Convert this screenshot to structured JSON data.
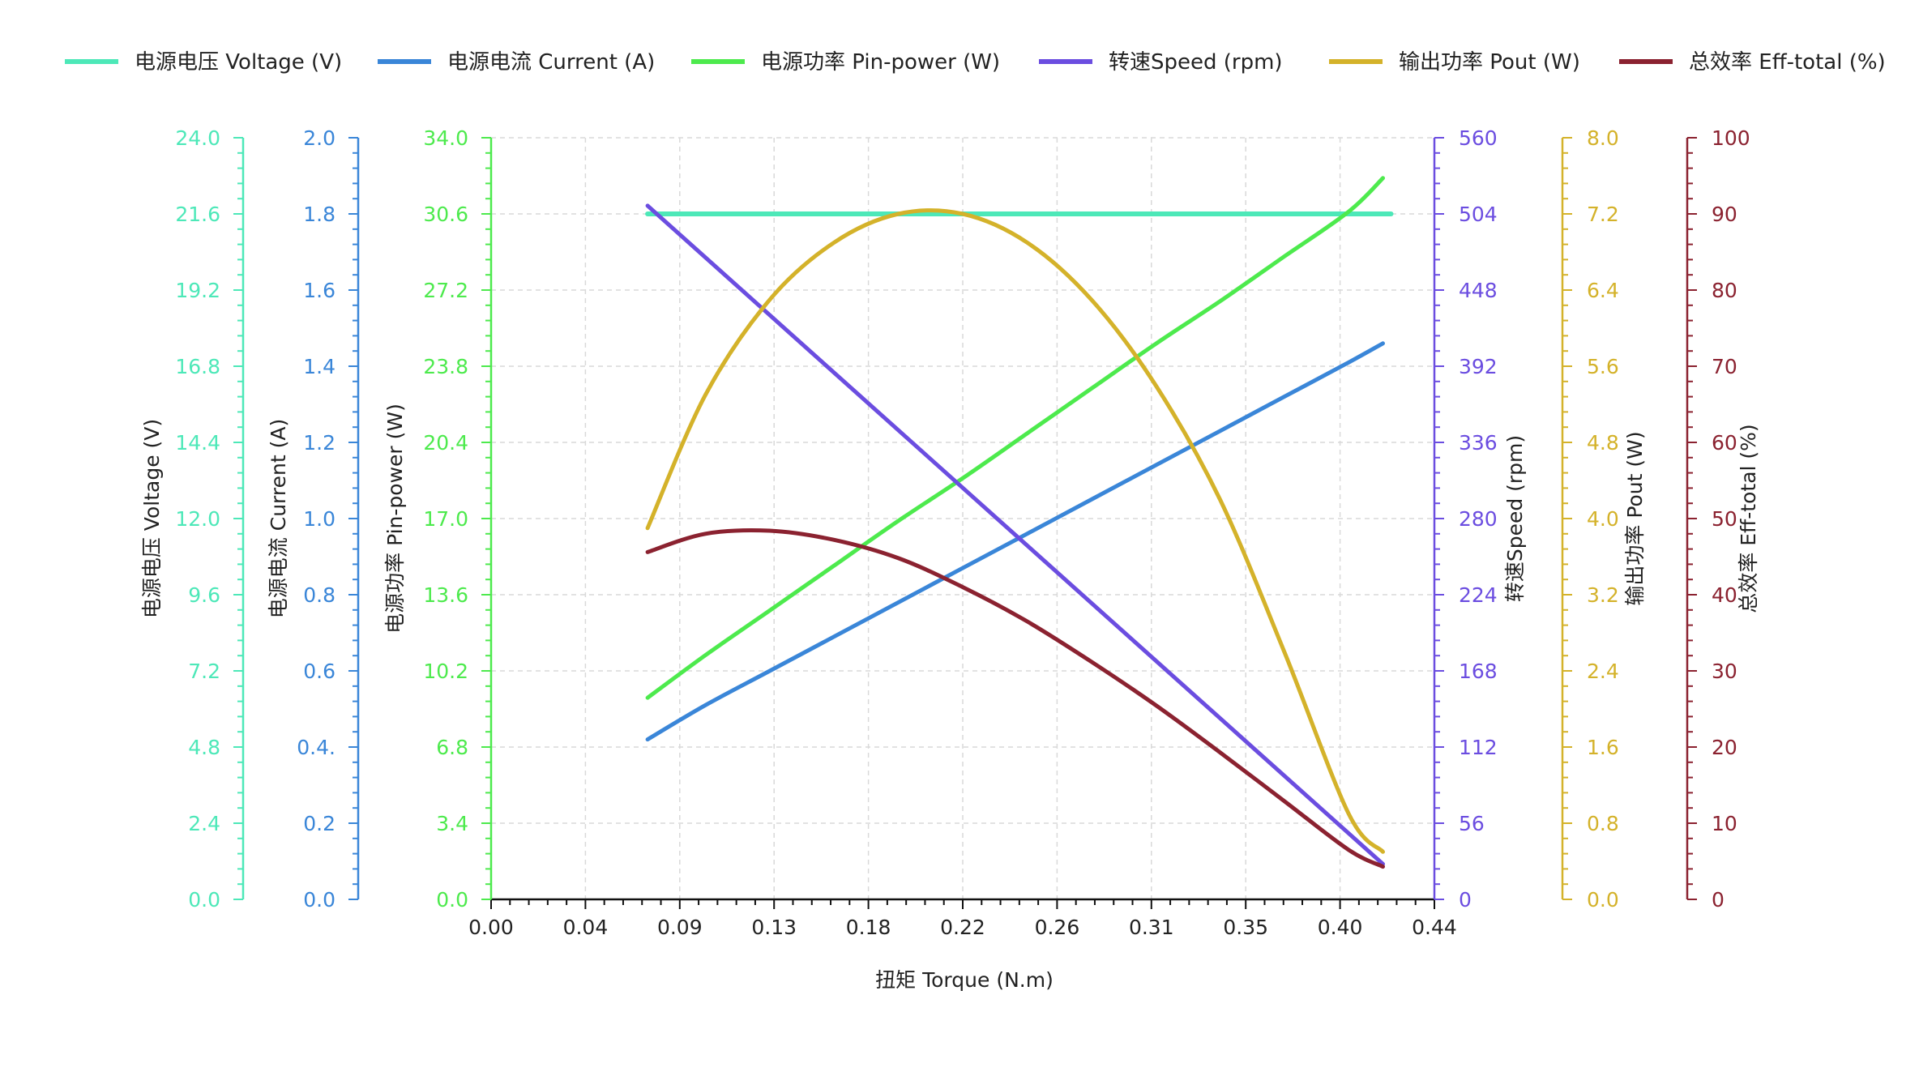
{
  "chart_data": {
    "type": "line",
    "title": "",
    "xlabel": "扭矩 Torque (N.m)",
    "xlim": [
      0,
      0.44
    ],
    "x_ticks": [
      "0.00",
      "0.04",
      "0.09",
      "0.13",
      "0.18",
      "0.22",
      "0.26",
      "0.31",
      "0.35",
      "0.40",
      "0.44"
    ],
    "grid": true,
    "legend_position": "top",
    "x": [
      0.073,
      0.1,
      0.13,
      0.16,
      0.19,
      0.22,
      0.25,
      0.28,
      0.31,
      0.34,
      0.37,
      0.4,
      0.416
    ],
    "axes": [
      {
        "id": "voltage",
        "label": "电源电压 Voltage (V)",
        "side": "left",
        "color": "#4de8b8",
        "range": [
          0,
          24
        ],
        "ticks": [
          "0.0",
          "2.4",
          "4.8",
          "7.2",
          "9.6",
          "12.0",
          "14.4",
          "16.8",
          "19.2",
          "21.6",
          "24.0"
        ]
      },
      {
        "id": "current",
        "label": "电源电流 Current (A)",
        "side": "left",
        "color": "#3a86d8",
        "range": [
          0,
          2
        ],
        "ticks": [
          "0.0",
          "0.2",
          "0.4.",
          "0.6",
          "0.8",
          "1.0",
          "1.2",
          "1.4",
          "1.6",
          "1.8",
          "2.0"
        ]
      },
      {
        "id": "pin",
        "label": "电源功率 Pin-power (W)",
        "side": "left",
        "color": "#4dea4d",
        "range": [
          0,
          34
        ],
        "ticks": [
          "0.0",
          "3.4",
          "6.8",
          "10.2",
          "13.6",
          "17.0",
          "20.4",
          "23.8",
          "27.2",
          "30.6",
          "34.0"
        ]
      },
      {
        "id": "speed",
        "label": "转速Speed (rpm)",
        "side": "right",
        "color": "#6b4de0",
        "range": [
          0,
          560
        ],
        "ticks": [
          "0",
          "56",
          "112",
          "168",
          "224",
          "280",
          "336",
          "392",
          "448",
          "504",
          "560"
        ]
      },
      {
        "id": "pout",
        "label": "输出功率 Pout (W)",
        "side": "right",
        "color": "#d4b22a",
        "range": [
          0,
          8
        ],
        "ticks": [
          "0.0",
          "0.8",
          "1.6",
          "2.4",
          "3.2",
          "4.0",
          "4.8",
          "5.6",
          "6.4",
          "7.2",
          "8.0"
        ]
      },
      {
        "id": "eff",
        "label": "总效率 Eff-total (%)",
        "side": "right",
        "color": "#8b2230",
        "range": [
          0,
          100
        ],
        "ticks": [
          "0",
          "10",
          "20",
          "30",
          "40",
          "50",
          "60",
          "70",
          "80",
          "90",
          "100"
        ]
      }
    ],
    "series": [
      {
        "name": "电源电压 Voltage (V)",
        "axis": "voltage",
        "color": "#4de8b8",
        "values": [
          21.6,
          21.6,
          21.6,
          21.6,
          21.6,
          21.6,
          21.6,
          21.6,
          21.6,
          21.6,
          21.6,
          21.6,
          21.6
        ]
      },
      {
        "name": "电源电流 Current (A)",
        "axis": "current",
        "color": "#3a86d8",
        "values": [
          0.42,
          0.51,
          0.6,
          0.69,
          0.78,
          0.87,
          0.96,
          1.05,
          1.14,
          1.23,
          1.32,
          1.41,
          1.46
        ]
      },
      {
        "name": "电源功率 Pin-power (W)",
        "axis": "pin",
        "color": "#4dea4d",
        "values": [
          9.0,
          10.9,
          12.9,
          14.9,
          16.9,
          18.8,
          20.8,
          22.8,
          24.8,
          26.7,
          28.7,
          30.7,
          32.2
        ]
      },
      {
        "name": "转速Speed (rpm)",
        "axis": "speed",
        "color": "#6b4de0",
        "values": [
          510,
          464,
          416,
          368,
          321,
          273,
          225,
          177,
          129,
          82,
          45,
          0,
          26
        ]
      },
      {
        "name": "输出功率 Pout (W)",
        "axis": "pout",
        "color": "#d4b22a",
        "values": [
          3.9,
          5.3,
          6.3,
          6.9,
          7.2,
          7.2,
          6.9,
          6.3,
          5.4,
          4.2,
          2.6,
          0.9,
          0.5
        ]
      },
      {
        "name": "总效率 Eff-total (%)",
        "axis": "eff",
        "color": "#8b2230",
        "values": [
          45.6,
          48.0,
          48.4,
          47.2,
          44.8,
          41.0,
          36.5,
          31.2,
          25.5,
          19.3,
          12.9,
          6.5,
          4.3
        ]
      }
    ]
  }
}
